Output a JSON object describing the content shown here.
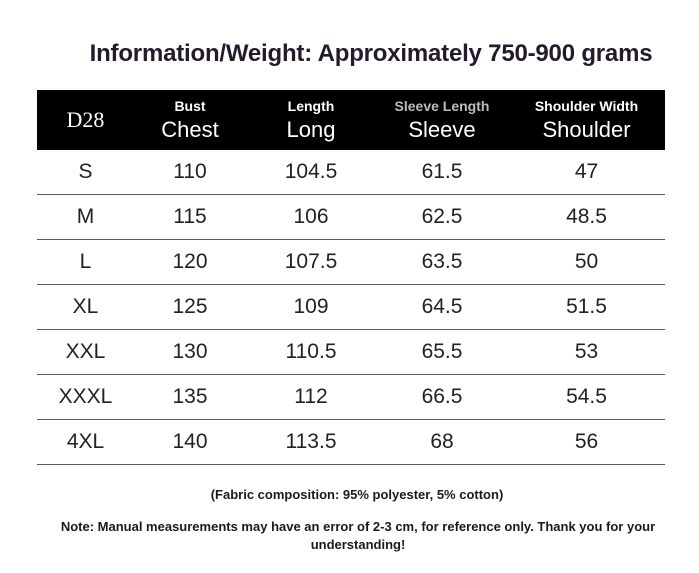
{
  "title": "Information/Weight: Approximately 750-900 grams",
  "table": {
    "code": "D28",
    "headers": [
      {
        "top": "Bust",
        "bottom": "Chest"
      },
      {
        "top": "Length",
        "bottom": "Long"
      },
      {
        "top": "Sleeve Length",
        "bottom": "Sleeve"
      },
      {
        "top": "Shoulder Width",
        "bottom": "Shoulder"
      }
    ],
    "rows": [
      {
        "size": "S",
        "chest": "110",
        "length": "104.5",
        "sleeve": "61.5",
        "shoulder": "47"
      },
      {
        "size": "M",
        "chest": "115",
        "length": "106",
        "sleeve": "62.5",
        "shoulder": "48.5"
      },
      {
        "size": "L",
        "chest": "120",
        "length": "107.5",
        "sleeve": "63.5",
        "shoulder": "50"
      },
      {
        "size": "XL",
        "chest": "125",
        "length": "109",
        "sleeve": "64.5",
        "shoulder": "51.5"
      },
      {
        "size": "XXL",
        "chest": "130",
        "length": "110.5",
        "sleeve": "65.5",
        "shoulder": "53"
      },
      {
        "size": "XXXL",
        "chest": "135",
        "length": "112",
        "sleeve": "66.5",
        "shoulder": "54.5"
      },
      {
        "size": "4XL",
        "chest": "140",
        "length": "113.5",
        "sleeve": "68",
        "shoulder": "56"
      }
    ]
  },
  "fabric": "(Fabric composition: 95% polyester, 5% cotton)",
  "note": "Note: Manual measurements may have an error of 2-3 cm, for reference only. Thank you for your understanding!"
}
